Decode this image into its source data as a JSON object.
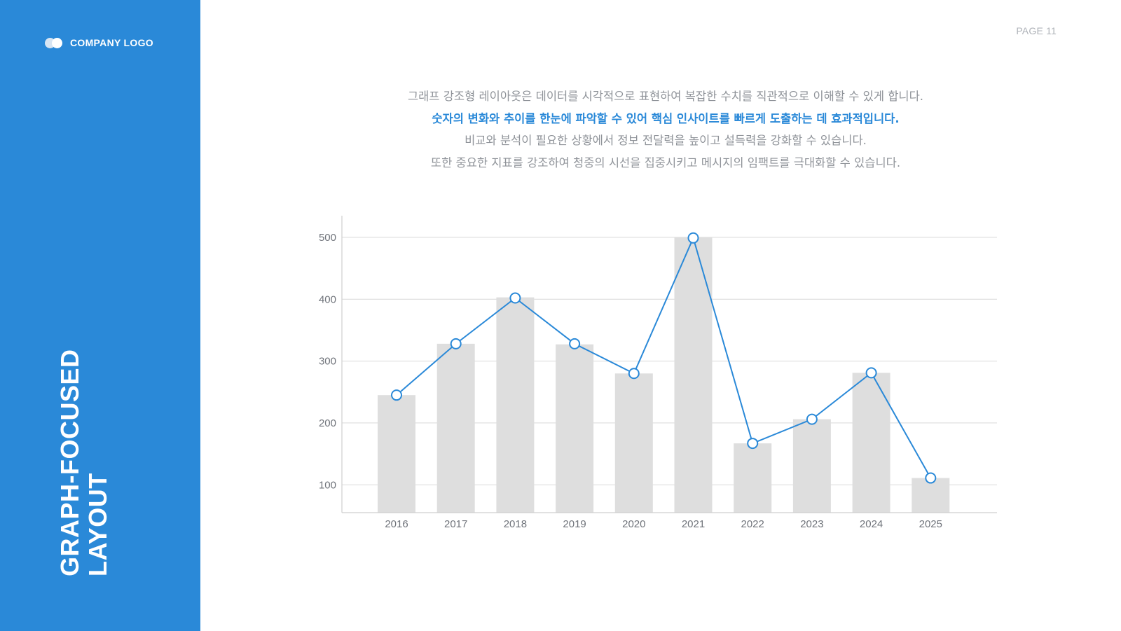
{
  "logo": {
    "text": "COMPANY LOGO"
  },
  "sidebar": {
    "title_line1": "GRAPH-FOCUSED",
    "title_line2": "LAYOUT"
  },
  "page": {
    "number": "PAGE 11"
  },
  "intro": {
    "line1": "그래프 강조형 레이아웃은 데이터를 시각적으로 표현하여 복잡한 수치를 직관적으로 이해할 수 있게 합니다.",
    "line2": "숫자의 변화와 추이를 한눈에 파악할 수 있어 핵심 인사이트를 빠르게 도출하는 데 효과적입니다.",
    "line3": "비교와 분석이 필요한 상황에서 정보 전달력을 높이고 설득력을 강화할 수 있습니다.",
    "line4": "또한 중요한 지표를 강조하여 청중의 시선을 집중시키고 메시지의 임팩트를 극대화할 수 있습니다."
  },
  "colors": {
    "accent": "#2a89d8",
    "bar": "#dedede",
    "grid": "#d9d9d9",
    "axis": "#cfcfcf",
    "muted_text": "#8f9399"
  },
  "chart_data": {
    "type": "bar",
    "categories": [
      "2016",
      "2017",
      "2018",
      "2019",
      "2020",
      "2021",
      "2022",
      "2023",
      "2024",
      "2025"
    ],
    "series": [
      {
        "type": "bar",
        "values": [
          245,
          328,
          403,
          327,
          280,
          500,
          167,
          206,
          281,
          111
        ]
      },
      {
        "type": "line",
        "values": [
          245,
          328,
          402,
          328,
          280,
          499,
          167,
          206,
          281,
          111
        ]
      }
    ],
    "yticks": [
      100,
      200,
      300,
      400,
      500
    ],
    "ylim": [
      55,
      535
    ],
    "grid": true,
    "title": "",
    "xlabel": "",
    "ylabel": ""
  }
}
